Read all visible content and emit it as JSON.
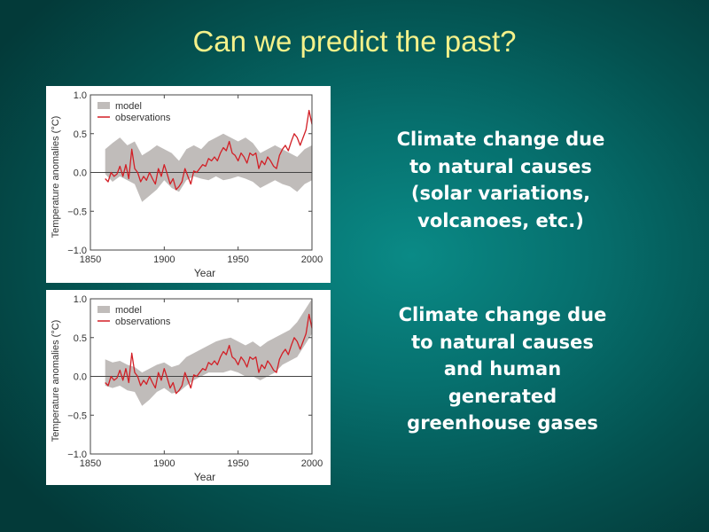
{
  "slide": {
    "title": "Can we predict the past?",
    "captions": [
      [
        "Climate change due",
        "to natural causes",
        "(solar variations,",
        "volcanoes, etc.)"
      ],
      [
        "Climate change due",
        "to natural causes",
        "and human",
        "generated",
        "greenhouse gases"
      ]
    ]
  },
  "colors": {
    "model_band": "#c0bcba",
    "observations": "#d21f26",
    "title": "#f4f18a"
  },
  "chart_data": [
    {
      "type": "line",
      "title": "",
      "xlabel": "Year",
      "ylabel": "Temperature anomalies (°C)",
      "xlim": [
        1850,
        2000
      ],
      "ylim": [
        -1.0,
        1.0
      ],
      "x_ticks": [
        1850,
        1900,
        1950,
        2000
      ],
      "y_ticks": [
        -1.0,
        -0.5,
        0.0,
        0.5,
        1.0
      ],
      "y_tick_labels": [
        "−1.0",
        "−0.5",
        "0.0",
        "0.5",
        "1.0"
      ],
      "legend": [
        "model",
        "observations"
      ],
      "legend_position": "top-left",
      "series": [
        {
          "name": "model",
          "kind": "band",
          "x": [
            1860,
            1865,
            1870,
            1875,
            1880,
            1885,
            1890,
            1895,
            1900,
            1905,
            1910,
            1915,
            1920,
            1925,
            1930,
            1935,
            1940,
            1945,
            1950,
            1955,
            1960,
            1965,
            1970,
            1975,
            1980,
            1985,
            1990,
            1995,
            2000
          ],
          "lower": [
            -0.02,
            -0.12,
            -0.05,
            -0.1,
            -0.15,
            -0.38,
            -0.3,
            -0.22,
            -0.1,
            -0.2,
            -0.25,
            -0.1,
            -0.05,
            -0.08,
            -0.1,
            -0.05,
            -0.1,
            -0.08,
            -0.05,
            -0.08,
            -0.12,
            -0.2,
            -0.15,
            -0.1,
            -0.15,
            -0.18,
            -0.25,
            -0.15,
            -0.1
          ],
          "upper": [
            0.3,
            0.38,
            0.45,
            0.35,
            0.4,
            0.22,
            0.28,
            0.35,
            0.3,
            0.25,
            0.15,
            0.3,
            0.35,
            0.3,
            0.4,
            0.45,
            0.5,
            0.45,
            0.4,
            0.45,
            0.38,
            0.25,
            0.3,
            0.35,
            0.3,
            0.25,
            0.2,
            0.3,
            0.35
          ]
        },
        {
          "name": "observations",
          "kind": "line",
          "x": [
            1860,
            1862,
            1864,
            1866,
            1868,
            1870,
            1872,
            1874,
            1876,
            1878,
            1880,
            1882,
            1884,
            1886,
            1888,
            1890,
            1892,
            1894,
            1896,
            1898,
            1900,
            1902,
            1904,
            1906,
            1908,
            1910,
            1912,
            1914,
            1916,
            1918,
            1920,
            1922,
            1924,
            1926,
            1928,
            1930,
            1932,
            1934,
            1936,
            1938,
            1940,
            1942,
            1944,
            1946,
            1948,
            1950,
            1952,
            1954,
            1956,
            1958,
            1960,
            1962,
            1964,
            1966,
            1968,
            1970,
            1972,
            1974,
            1976,
            1978,
            1980,
            1982,
            1984,
            1986,
            1988,
            1990,
            1992,
            1994,
            1996,
            1998,
            2000
          ],
          "values": [
            -0.08,
            -0.12,
            0.0,
            -0.05,
            -0.02,
            0.08,
            -0.05,
            0.1,
            -0.08,
            0.3,
            0.05,
            0.0,
            -0.12,
            -0.05,
            -0.1,
            0.0,
            -0.08,
            -0.15,
            0.05,
            -0.05,
            0.1,
            -0.02,
            -0.15,
            -0.08,
            -0.22,
            -0.18,
            -0.12,
            0.05,
            -0.05,
            -0.15,
            0.02,
            0.0,
            0.05,
            0.1,
            0.08,
            0.18,
            0.15,
            0.2,
            0.15,
            0.25,
            0.32,
            0.28,
            0.4,
            0.25,
            0.22,
            0.15,
            0.25,
            0.2,
            0.12,
            0.25,
            0.22,
            0.25,
            0.05,
            0.15,
            0.1,
            0.2,
            0.15,
            0.08,
            0.05,
            0.22,
            0.3,
            0.35,
            0.28,
            0.4,
            0.5,
            0.45,
            0.35,
            0.45,
            0.55,
            0.8,
            0.62
          ]
        }
      ]
    },
    {
      "type": "line",
      "title": "",
      "xlabel": "Year",
      "ylabel": "Temperature anomalies (°C)",
      "xlim": [
        1850,
        2000
      ],
      "ylim": [
        -1.0,
        1.0
      ],
      "x_ticks": [
        1850,
        1900,
        1950,
        2000
      ],
      "y_ticks": [
        -1.0,
        -0.5,
        0.0,
        0.5,
        1.0
      ],
      "y_tick_labels": [
        "−1.0",
        "−0.5",
        "0.0",
        "0.5",
        "1.0"
      ],
      "legend": [
        "model",
        "observations"
      ],
      "legend_position": "top-left",
      "series": [
        {
          "name": "model",
          "kind": "band",
          "x": [
            1860,
            1865,
            1870,
            1875,
            1880,
            1885,
            1890,
            1895,
            1900,
            1905,
            1910,
            1915,
            1920,
            1925,
            1930,
            1935,
            1940,
            1945,
            1950,
            1955,
            1960,
            1965,
            1970,
            1975,
            1980,
            1985,
            1990,
            1995,
            2000
          ],
          "lower": [
            -0.12,
            -0.15,
            -0.12,
            -0.18,
            -0.2,
            -0.38,
            -0.3,
            -0.2,
            -0.15,
            -0.22,
            -0.2,
            -0.12,
            -0.05,
            0.0,
            0.05,
            0.05,
            0.05,
            0.08,
            0.05,
            0.0,
            0.0,
            -0.05,
            0.0,
            0.05,
            0.15,
            0.2,
            0.25,
            0.4,
            0.55
          ],
          "upper": [
            0.22,
            0.18,
            0.2,
            0.15,
            0.12,
            0.05,
            0.1,
            0.15,
            0.18,
            0.12,
            0.15,
            0.25,
            0.3,
            0.35,
            0.4,
            0.45,
            0.48,
            0.5,
            0.45,
            0.4,
            0.45,
            0.38,
            0.45,
            0.5,
            0.55,
            0.6,
            0.7,
            0.85,
            1.0
          ]
        },
        {
          "name": "observations",
          "kind": "line",
          "x": [
            1860,
            1862,
            1864,
            1866,
            1868,
            1870,
            1872,
            1874,
            1876,
            1878,
            1880,
            1882,
            1884,
            1886,
            1888,
            1890,
            1892,
            1894,
            1896,
            1898,
            1900,
            1902,
            1904,
            1906,
            1908,
            1910,
            1912,
            1914,
            1916,
            1918,
            1920,
            1922,
            1924,
            1926,
            1928,
            1930,
            1932,
            1934,
            1936,
            1938,
            1940,
            1942,
            1944,
            1946,
            1948,
            1950,
            1952,
            1954,
            1956,
            1958,
            1960,
            1962,
            1964,
            1966,
            1968,
            1970,
            1972,
            1974,
            1976,
            1978,
            1980,
            1982,
            1984,
            1986,
            1988,
            1990,
            1992,
            1994,
            1996,
            1998,
            2000
          ],
          "values": [
            -0.08,
            -0.12,
            0.0,
            -0.05,
            -0.02,
            0.08,
            -0.05,
            0.1,
            -0.08,
            0.3,
            0.05,
            0.0,
            -0.12,
            -0.05,
            -0.1,
            0.0,
            -0.08,
            -0.15,
            0.05,
            -0.05,
            0.1,
            -0.02,
            -0.15,
            -0.08,
            -0.22,
            -0.18,
            -0.12,
            0.05,
            -0.05,
            -0.15,
            0.02,
            0.0,
            0.05,
            0.1,
            0.08,
            0.18,
            0.15,
            0.2,
            0.15,
            0.25,
            0.32,
            0.28,
            0.4,
            0.25,
            0.22,
            0.15,
            0.25,
            0.2,
            0.12,
            0.25,
            0.22,
            0.25,
            0.05,
            0.15,
            0.1,
            0.2,
            0.15,
            0.08,
            0.05,
            0.22,
            0.3,
            0.35,
            0.28,
            0.4,
            0.5,
            0.45,
            0.35,
            0.45,
            0.55,
            0.8,
            0.62
          ]
        }
      ]
    }
  ]
}
